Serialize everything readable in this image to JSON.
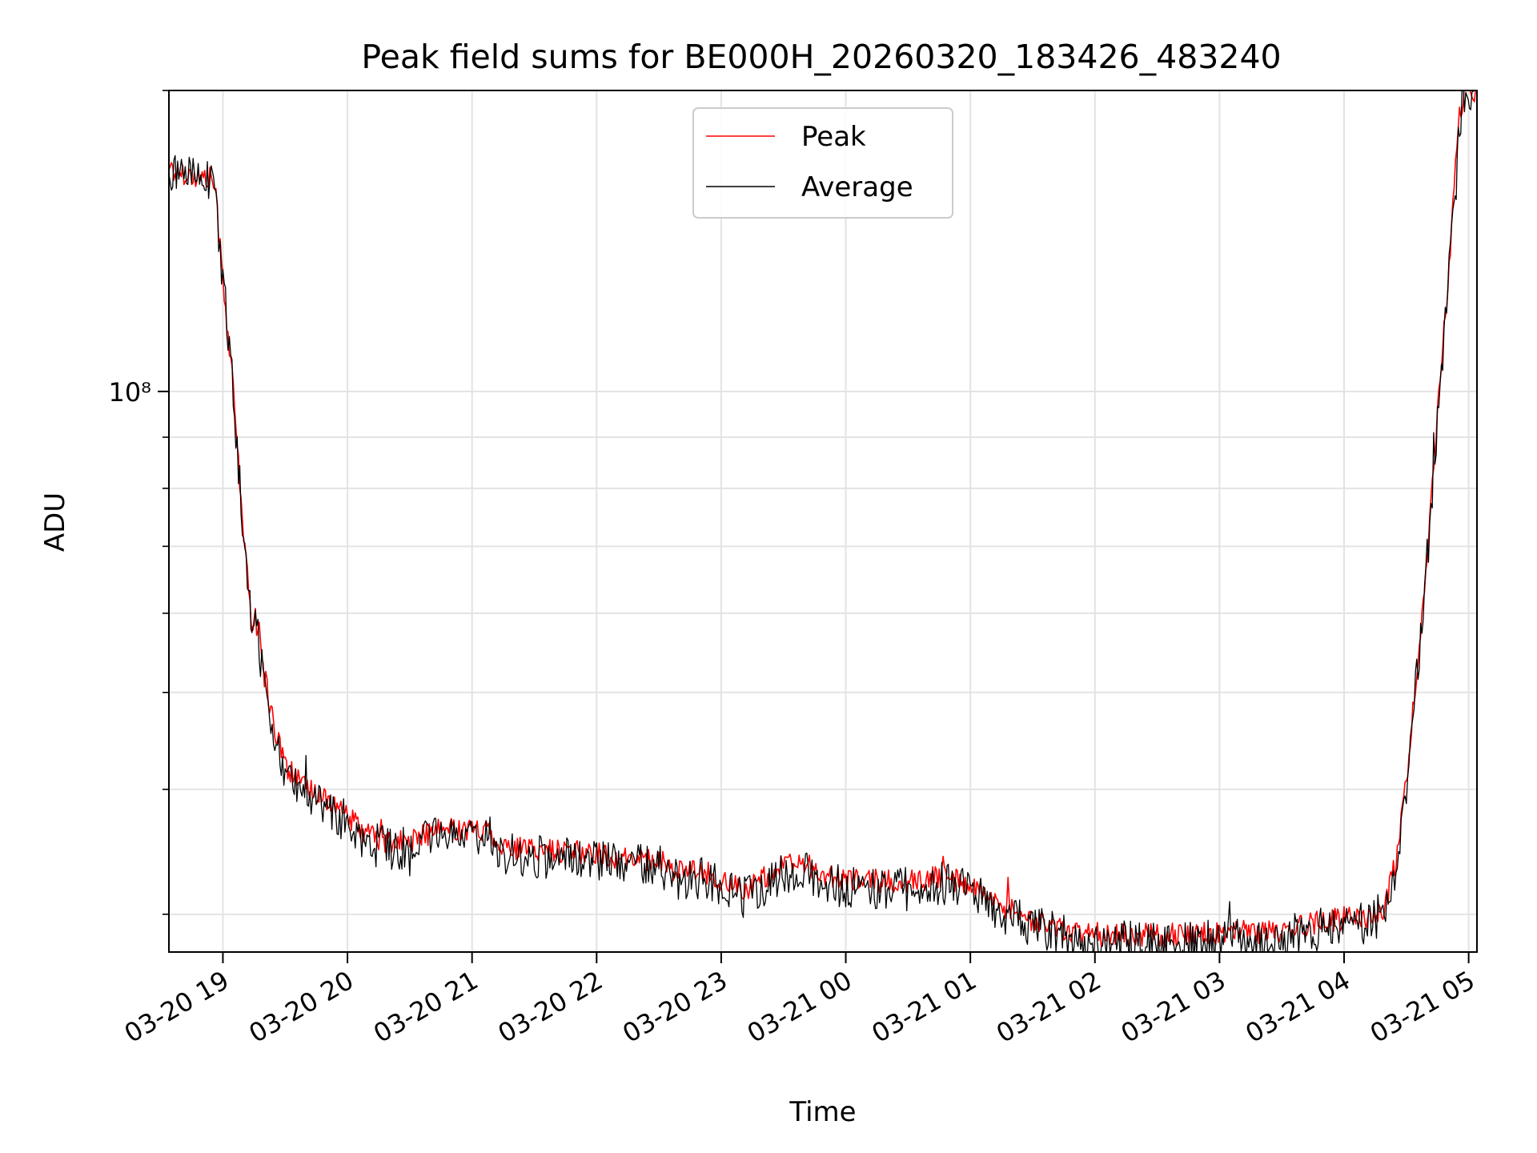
{
  "chart_data": {
    "type": "line",
    "title": "Peak field sums for BE000H_20260320_183426_483240",
    "xlabel": "Time",
    "ylabel": "ADU",
    "y_scale": "log",
    "ylim": [
      27500000,
      200000000
    ],
    "xlim": [
      "2026-03-20 18:34",
      "2026-03-21 05:04"
    ],
    "x_ticks": [
      {
        "time": "2026-03-20 19:00",
        "label": "03-20 19"
      },
      {
        "time": "2026-03-20 20:00",
        "label": "03-20 20"
      },
      {
        "time": "2026-03-20 21:00",
        "label": "03-20 21"
      },
      {
        "time": "2026-03-20 22:00",
        "label": "03-20 22"
      },
      {
        "time": "2026-03-20 23:00",
        "label": "03-20 23"
      },
      {
        "time": "2026-03-21 00:00",
        "label": "03-21 00"
      },
      {
        "time": "2026-03-21 01:00",
        "label": "03-21 01"
      },
      {
        "time": "2026-03-21 02:00",
        "label": "03-21 02"
      },
      {
        "time": "2026-03-21 03:00",
        "label": "03-21 03"
      },
      {
        "time": "2026-03-21 04:00",
        "label": "03-21 04"
      },
      {
        "time": "2026-03-21 05:00",
        "label": "03-21 05"
      }
    ],
    "y_major_ticks": [
      {
        "value": 100000000,
        "label": "10⁸"
      }
    ],
    "y_minor_ticks": [
      30000000,
      40000000,
      50000000,
      60000000,
      70000000,
      80000000,
      90000000,
      200000000
    ],
    "grid": true,
    "legend_position": "upper center",
    "series": [
      {
        "name": "Peak",
        "color": "#ff0000",
        "noise": 0.012,
        "points": [
          [
            "2026-03-20 18:34",
            169000000
          ],
          [
            "2026-03-20 18:37",
            165000000
          ],
          [
            "2026-03-20 18:40",
            166000000
          ],
          [
            "2026-03-20 18:45",
            164000000
          ],
          [
            "2026-03-20 18:55",
            163000000
          ],
          [
            "2026-03-20 18:56",
            161000000
          ],
          [
            "2026-03-20 19:00",
            130000000
          ],
          [
            "2026-03-20 19:05",
            100000000
          ],
          [
            "2026-03-20 19:10",
            72000000
          ],
          [
            "2026-03-20 19:13",
            61000000
          ],
          [
            "2026-03-20 19:14",
            58000000
          ],
          [
            "2026-03-20 19:15",
            60500000
          ],
          [
            "2026-03-20 19:20",
            52000000
          ],
          [
            "2026-03-20 19:25",
            46000000
          ],
          [
            "2026-03-20 19:30",
            42500000
          ],
          [
            "2026-03-20 19:35",
            41000000
          ],
          [
            "2026-03-20 19:40",
            40000000
          ],
          [
            "2026-03-20 19:50",
            39200000
          ],
          [
            "2026-03-20 20:00",
            37500000
          ],
          [
            "2026-03-20 20:10",
            36000000
          ],
          [
            "2026-03-20 20:20",
            35300000
          ],
          [
            "2026-03-20 20:30",
            35500000
          ],
          [
            "2026-03-20 20:40",
            36200000
          ],
          [
            "2026-03-20 20:50",
            36600000
          ],
          [
            "2026-03-20 21:00",
            36400000
          ],
          [
            "2026-03-20 21:08",
            36500000
          ],
          [
            "2026-03-20 21:15",
            35000000
          ],
          [
            "2026-03-20 21:30",
            34800000
          ],
          [
            "2026-03-20 21:45",
            34700000
          ],
          [
            "2026-03-20 22:00",
            34500000
          ],
          [
            "2026-03-20 22:15",
            34000000
          ],
          [
            "2026-03-20 22:30",
            34000000
          ],
          [
            "2026-03-20 22:40",
            33000000
          ],
          [
            "2026-03-20 22:50",
            33200000
          ],
          [
            "2026-03-20 23:00",
            32400000
          ],
          [
            "2026-03-20 23:10",
            31700000
          ],
          [
            "2026-03-20 23:20",
            32600000
          ],
          [
            "2026-03-20 23:30",
            33500000
          ],
          [
            "2026-03-20 23:40",
            33700000
          ],
          [
            "2026-03-20 23:50",
            32700000
          ],
          [
            "2026-03-21 00:00",
            32500000
          ],
          [
            "2026-03-21 00:15",
            32400000
          ],
          [
            "2026-03-21 00:30",
            32300000
          ],
          [
            "2026-03-21 00:45",
            32700000
          ],
          [
            "2026-03-21 01:00",
            32200000
          ],
          [
            "2026-03-21 01:15",
            30700000
          ],
          [
            "2026-03-21 01:30",
            29600000
          ],
          [
            "2026-03-21 01:45",
            29000000
          ],
          [
            "2026-03-21 02:00",
            28600000
          ],
          [
            "2026-03-21 02:30",
            28600000
          ],
          [
            "2026-03-21 03:00",
            28700000
          ],
          [
            "2026-03-21 03:30",
            28900000
          ],
          [
            "2026-03-21 03:50",
            29500000
          ],
          [
            "2026-03-21 04:00",
            29700000
          ],
          [
            "2026-03-21 04:10",
            29700000
          ],
          [
            "2026-03-21 04:20",
            30600000
          ],
          [
            "2026-03-21 04:25",
            34000000
          ],
          [
            "2026-03-21 04:30",
            41000000
          ],
          [
            "2026-03-21 04:35",
            52000000
          ],
          [
            "2026-03-21 04:40",
            68000000
          ],
          [
            "2026-03-21 04:45",
            95000000
          ],
          [
            "2026-03-21 04:50",
            128000000
          ],
          [
            "2026-03-21 04:53",
            160000000
          ],
          [
            "2026-03-21 04:55",
            185000000
          ],
          [
            "2026-03-21 04:58",
            200000000
          ],
          [
            "2026-03-21 05:04",
            200000000
          ]
        ]
      },
      {
        "name": "Average",
        "color": "#000000",
        "noise": 0.022,
        "points": [
          [
            "2026-03-20 18:34",
            168500000
          ],
          [
            "2026-03-20 18:37",
            164500000
          ],
          [
            "2026-03-20 18:40",
            165500000
          ],
          [
            "2026-03-20 18:45",
            163500000
          ],
          [
            "2026-03-20 18:55",
            162500000
          ],
          [
            "2026-03-20 18:56",
            160500000
          ],
          [
            "2026-03-20 19:00",
            129500000
          ],
          [
            "2026-03-20 19:05",
            99500000
          ],
          [
            "2026-03-20 19:10",
            71500000
          ],
          [
            "2026-03-20 19:13",
            60500000
          ],
          [
            "2026-03-20 19:14",
            57500000
          ],
          [
            "2026-03-20 19:15",
            60000000
          ],
          [
            "2026-03-20 19:20",
            51500000
          ],
          [
            "2026-03-20 19:25",
            45500000
          ],
          [
            "2026-03-20 19:30",
            41800000
          ],
          [
            "2026-03-20 19:35",
            40300000
          ],
          [
            "2026-03-20 19:40",
            39400000
          ],
          [
            "2026-03-20 19:50",
            38600000
          ],
          [
            "2026-03-20 20:00",
            36900000
          ],
          [
            "2026-03-20 20:10",
            35400000
          ],
          [
            "2026-03-20 20:20",
            34800000
          ],
          [
            "2026-03-20 20:30",
            35000000
          ],
          [
            "2026-03-20 20:40",
            35600000
          ],
          [
            "2026-03-20 20:50",
            36000000
          ],
          [
            "2026-03-20 21:00",
            35900000
          ],
          [
            "2026-03-20 21:08",
            36000000
          ],
          [
            "2026-03-20 21:15",
            34500000
          ],
          [
            "2026-03-20 21:30",
            34300000
          ],
          [
            "2026-03-20 21:45",
            34200000
          ],
          [
            "2026-03-20 22:00",
            34000000
          ],
          [
            "2026-03-20 22:15",
            33500000
          ],
          [
            "2026-03-20 22:30",
            33500000
          ],
          [
            "2026-03-20 22:40",
            32500000
          ],
          [
            "2026-03-20 22:50",
            32700000
          ],
          [
            "2026-03-20 23:00",
            31900000
          ],
          [
            "2026-03-20 23:10",
            31200000
          ],
          [
            "2026-03-20 23:20",
            32100000
          ],
          [
            "2026-03-20 23:30",
            33000000
          ],
          [
            "2026-03-20 23:40",
            33200000
          ],
          [
            "2026-03-20 23:50",
            32200000
          ],
          [
            "2026-03-21 00:00",
            32000000
          ],
          [
            "2026-03-21 00:15",
            31900000
          ],
          [
            "2026-03-21 00:30",
            31800000
          ],
          [
            "2026-03-21 00:45",
            32200000
          ],
          [
            "2026-03-21 01:00",
            31700000
          ],
          [
            "2026-03-21 01:15",
            30200000
          ],
          [
            "2026-03-21 01:30",
            29100000
          ],
          [
            "2026-03-21 01:45",
            28500000
          ],
          [
            "2026-03-21 02:00",
            28100000
          ],
          [
            "2026-03-21 02:30",
            28100000
          ],
          [
            "2026-03-21 03:00",
            28200000
          ],
          [
            "2026-03-21 03:30",
            28400000
          ],
          [
            "2026-03-21 03:50",
            29000000
          ],
          [
            "2026-03-21 04:00",
            29300000
          ],
          [
            "2026-03-21 04:10",
            29300000
          ],
          [
            "2026-03-21 04:20",
            30200000
          ],
          [
            "2026-03-21 04:25",
            33700000
          ],
          [
            "2026-03-21 04:30",
            40700000
          ],
          [
            "2026-03-21 04:35",
            51700000
          ],
          [
            "2026-03-21 04:40",
            67700000
          ],
          [
            "2026-03-21 04:45",
            94500000
          ],
          [
            "2026-03-21 04:50",
            127500000
          ],
          [
            "2026-03-21 04:53",
            158000000
          ],
          [
            "2026-03-21 04:54",
            150000000
          ],
          [
            "2026-03-21 04:55",
            183000000
          ],
          [
            "2026-03-21 04:58",
            199000000
          ],
          [
            "2026-03-21 05:04",
            200000000
          ]
        ]
      }
    ]
  }
}
